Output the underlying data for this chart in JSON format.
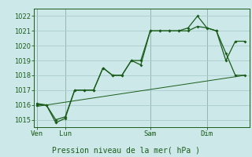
{
  "background_color": "#cce8e8",
  "grid_color": "#aacccc",
  "line_color": "#1a5c1a",
  "title": "Pression niveau de la mer( hPa )",
  "ylim": [
    1014.5,
    1022.5
  ],
  "yticks": [
    1015,
    1016,
    1017,
    1018,
    1019,
    1020,
    1021,
    1022
  ],
  "day_labels": [
    "Ven",
    "Lun",
    "Sam",
    "Dim"
  ],
  "day_positions": [
    0,
    3,
    12,
    18
  ],
  "xlim": [
    -0.3,
    22.5
  ],
  "line1_x": [
    0,
    1,
    2,
    3,
    4,
    5,
    6,
    7,
    8,
    9,
    10,
    11,
    12,
    13,
    14,
    15,
    16,
    17,
    18,
    19,
    20,
    21,
    22
  ],
  "line1_y": [
    1016.0,
    1016.0,
    1015.0,
    1015.2,
    1017.0,
    1017.0,
    1017.0,
    1018.5,
    1018.0,
    1018.0,
    1019.0,
    1019.0,
    1021.0,
    1021.0,
    1021.0,
    1021.0,
    1021.0,
    1021.3,
    1021.2,
    1021.0,
    1019.0,
    1020.3,
    1020.3
  ],
  "line2_x": [
    0,
    1,
    2,
    3,
    4,
    5,
    6,
    7,
    8,
    9,
    10,
    11,
    12,
    13,
    14,
    15,
    16,
    17,
    18,
    19,
    20,
    21,
    22
  ],
  "line2_y": [
    1016.1,
    1016.0,
    1014.8,
    1015.1,
    1017.0,
    1017.0,
    1017.0,
    1018.5,
    1018.0,
    1018.0,
    1019.0,
    1018.7,
    1021.0,
    1021.0,
    1021.0,
    1021.0,
    1021.2,
    1022.0,
    1021.2,
    1021.0,
    1019.5,
    1018.0,
    1018.0
  ],
  "line3_x": [
    0,
    22
  ],
  "line3_y": [
    1015.9,
    1018.0
  ],
  "vline_positions": [
    0,
    3,
    12,
    18
  ],
  "marker_size": 2.0,
  "line_width": 0.9,
  "ylabel_fontsize": 6.0,
  "xlabel_fontsize": 6.5,
  "title_fontsize": 7.0
}
